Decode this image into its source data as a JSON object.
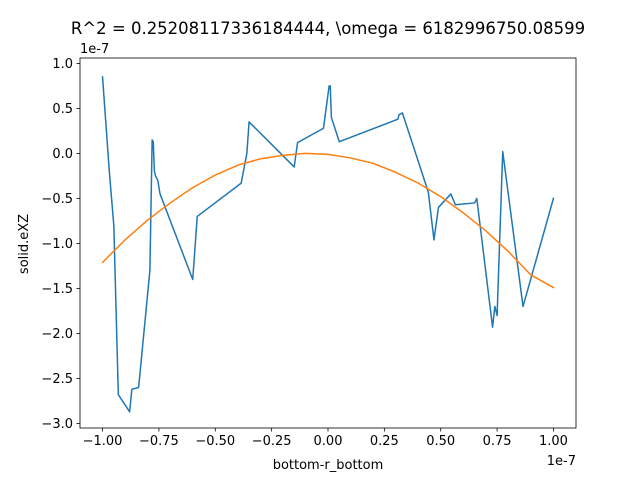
{
  "chart_data": {
    "type": "line",
    "title": "R^2 = 0.25208117336184444, \\omega = 6182996750.08599",
    "xlabel": "bottom-r_bottom",
    "ylabel": "solid.eXZ",
    "x_offset_label": "1e-7",
    "y_offset_label": "1e-7",
    "xlim": [
      -1.1,
      1.1
    ],
    "ylim": [
      -3.05,
      1.06
    ],
    "x_ticks": [
      -1.0,
      -0.75,
      -0.5,
      -0.25,
      0.0,
      0.25,
      0.5,
      0.75,
      1.0
    ],
    "x_tick_labels": [
      "−1.00",
      "−0.75",
      "−0.50",
      "−0.25",
      "0.00",
      "0.25",
      "0.50",
      "0.75",
      "1.00"
    ],
    "y_ticks": [
      1.0,
      0.5,
      0.0,
      -0.5,
      -1.0,
      -1.5,
      -2.0,
      -2.5,
      -3.0
    ],
    "y_tick_labels": [
      "1.0",
      "0.5",
      "0.0",
      "−0.5",
      "−1.0",
      "−1.5",
      "−2.0",
      "−2.5",
      "−3.0"
    ],
    "grid": false,
    "series": [
      {
        "color": "#1f77b4",
        "x": [
          -1.0,
          -0.99,
          -0.97,
          -0.95,
          -0.93,
          -0.88,
          -0.87,
          -0.84,
          -0.79,
          -0.78,
          -0.775,
          -0.77,
          -0.765,
          -0.755,
          -0.745,
          -0.6,
          -0.58,
          -0.385,
          -0.36,
          -0.35,
          -0.15,
          -0.135,
          -0.02,
          0.005,
          0.01,
          0.015,
          0.05,
          0.31,
          0.315,
          0.33,
          0.445,
          0.47,
          0.49,
          0.545,
          0.565,
          0.65,
          0.66,
          0.73,
          0.74,
          0.75,
          0.775,
          0.865,
          1.0
        ],
        "y": [
          0.85,
          0.5,
          -0.2,
          -0.8,
          -2.68,
          -2.87,
          -2.62,
          -2.6,
          -1.3,
          0.15,
          0.13,
          -0.2,
          -0.25,
          -0.3,
          -0.45,
          -1.4,
          -0.7,
          -0.33,
          0.0,
          0.35,
          -0.15,
          0.12,
          0.28,
          0.75,
          0.75,
          0.4,
          0.13,
          0.38,
          0.43,
          0.45,
          -0.43,
          -0.96,
          -0.6,
          -0.45,
          -0.57,
          -0.55,
          -0.5,
          -1.93,
          -1.7,
          -1.8,
          0.02,
          -1.7,
          -0.5
        ]
      },
      {
        "color": "#ff7f0e",
        "x": [
          -1.0,
          -0.9,
          -0.8,
          -0.7,
          -0.6,
          -0.5,
          -0.4,
          -0.3,
          -0.2,
          -0.1,
          0.0,
          0.1,
          0.2,
          0.3,
          0.4,
          0.5,
          0.6,
          0.7,
          0.8,
          0.9,
          1.0
        ],
        "y": [
          -1.21,
          -0.96,
          -0.74,
          -0.55,
          -0.38,
          -0.24,
          -0.13,
          -0.06,
          -0.02,
          -0.0,
          -0.01,
          -0.05,
          -0.11,
          -0.21,
          -0.33,
          -0.48,
          -0.66,
          -0.86,
          -1.09,
          -1.35,
          -1.49
        ]
      }
    ]
  }
}
